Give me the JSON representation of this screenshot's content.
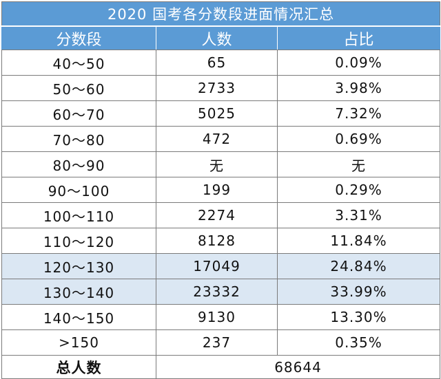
{
  "title": "2020 国考各分数段进面情况汇总",
  "headers": [
    "分数段",
    "人数",
    "占比"
  ],
  "rows": [
    {
      "range": "40～50",
      "count": "65",
      "pct": "0.09%",
      "highlighted": false
    },
    {
      "range": "50～60",
      "count": "2733",
      "pct": "3.98%",
      "highlighted": false
    },
    {
      "range": "60～70",
      "count": "5025",
      "pct": "7.32%",
      "highlighted": false
    },
    {
      "range": "70～80",
      "count": "472",
      "pct": "0.69%",
      "highlighted": false
    },
    {
      "range": "80～90",
      "count": "无",
      "pct": "无",
      "highlighted": false
    },
    {
      "range": "90～100",
      "count": "199",
      "pct": "0.29%",
      "highlighted": false
    },
    {
      "range": "100～110",
      "count": "2274",
      "pct": "3.31%",
      "highlighted": false
    },
    {
      "range": "110～120",
      "count": "8128",
      "pct": "11.84%",
      "highlighted": false
    },
    {
      "range": "120～130",
      "count": "17049",
      "pct": "24.84%",
      "highlighted": true
    },
    {
      "range": "130～140",
      "count": "23332",
      "pct": "33.99%",
      "highlighted": true
    },
    {
      "range": "140～150",
      "count": "9130",
      "pct": "13.30%",
      "highlighted": false
    },
    {
      "range": ">150",
      "count": "237",
      "pct": "0.35%",
      "highlighted": false
    }
  ],
  "total": {
    "label": "总人数",
    "value": "68644"
  },
  "colors": {
    "header_bg": "#5b9bd5",
    "highlight_bg": "#dbe7f3",
    "border": "#7a7a7a"
  }
}
